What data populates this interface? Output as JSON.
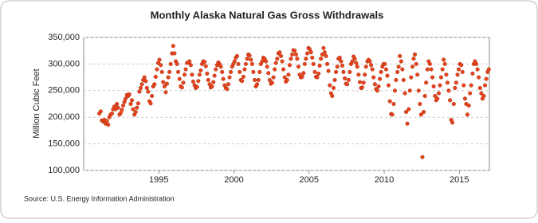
{
  "chart_data": {
    "type": "scatter",
    "title": "Monthly Alaska Natural Gas Gross Withdrawals",
    "y_label": "Million Cubic Feet",
    "source": "Source: U.S. Energy Information Administration",
    "xlim": [
      1990,
      2017
    ],
    "xticks": [
      1995,
      2000,
      2005,
      2010,
      2015
    ],
    "ylim": [
      100000,
      350000
    ],
    "yticks": [
      {
        "value": 100000,
        "label": "100,000"
      },
      {
        "value": 150000,
        "label": "150,000"
      },
      {
        "value": 200000,
        "label": "200,000"
      },
      {
        "value": 250000,
        "label": "250,000"
      },
      {
        "value": 300000,
        "label": "300,000"
      },
      {
        "value": 350000,
        "label": "350,000"
      }
    ],
    "grid": true,
    "series": [
      {
        "name": "Monthly Alaska Natural Gas Gross Withdrawals",
        "color": "#e8451e",
        "x": [
          1991.04,
          1991.13,
          1991.21,
          1991.29,
          1991.38,
          1991.46,
          1991.54,
          1991.63,
          1991.71,
          1991.79,
          1991.88,
          1991.96,
          1992.04,
          1992.13,
          1992.21,
          1992.29,
          1992.38,
          1992.46,
          1992.54,
          1992.63,
          1992.71,
          1992.79,
          1992.88,
          1992.96,
          1993.04,
          1993.13,
          1993.21,
          1993.29,
          1993.38,
          1993.46,
          1993.54,
          1993.63,
          1993.71,
          1993.79,
          1993.88,
          1993.96,
          1994.04,
          1994.13,
          1994.21,
          1994.29,
          1994.38,
          1994.46,
          1994.54,
          1994.63,
          1994.71,
          1994.79,
          1994.88,
          1994.96,
          1995.04,
          1995.13,
          1995.21,
          1995.29,
          1995.38,
          1995.46,
          1995.54,
          1995.63,
          1995.71,
          1995.79,
          1995.88,
          1995.96,
          1996.04,
          1996.13,
          1996.21,
          1996.29,
          1996.38,
          1996.46,
          1996.54,
          1996.63,
          1996.71,
          1996.79,
          1996.88,
          1996.96,
          1997.04,
          1997.13,
          1997.21,
          1997.29,
          1997.38,
          1997.46,
          1997.54,
          1997.63,
          1997.71,
          1997.79,
          1997.88,
          1997.96,
          1998.04,
          1998.13,
          1998.21,
          1998.29,
          1998.38,
          1998.46,
          1998.54,
          1998.63,
          1998.71,
          1998.79,
          1998.88,
          1998.96,
          1999.04,
          1999.13,
          1999.21,
          1999.29,
          1999.38,
          1999.46,
          1999.54,
          1999.63,
          1999.71,
          1999.79,
          1999.88,
          1999.96,
          2000.04,
          2000.13,
          2000.21,
          2000.29,
          2000.38,
          2000.46,
          2000.54,
          2000.63,
          2000.71,
          2000.79,
          2000.88,
          2000.96,
          2001.04,
          2001.13,
          2001.21,
          2001.29,
          2001.38,
          2001.46,
          2001.54,
          2001.63,
          2001.71,
          2001.79,
          2001.88,
          2001.96,
          2002.04,
          2002.13,
          2002.21,
          2002.29,
          2002.38,
          2002.46,
          2002.54,
          2002.63,
          2002.71,
          2002.79,
          2002.88,
          2002.96,
          2003.04,
          2003.13,
          2003.21,
          2003.29,
          2003.38,
          2003.46,
          2003.54,
          2003.63,
          2003.71,
          2003.79,
          2003.88,
          2003.96,
          2004.04,
          2004.13,
          2004.21,
          2004.29,
          2004.38,
          2004.46,
          2004.54,
          2004.63,
          2004.71,
          2004.79,
          2004.88,
          2004.96,
          2005.04,
          2005.13,
          2005.21,
          2005.29,
          2005.38,
          2005.46,
          2005.54,
          2005.63,
          2005.71,
          2005.79,
          2005.88,
          2005.96,
          2006.04,
          2006.13,
          2006.21,
          2006.29,
          2006.38,
          2006.46,
          2006.54,
          2006.63,
          2006.71,
          2006.79,
          2006.88,
          2006.96,
          2007.04,
          2007.13,
          2007.21,
          2007.29,
          2007.38,
          2007.46,
          2007.54,
          2007.63,
          2007.71,
          2007.79,
          2007.88,
          2007.96,
          2008.04,
          2008.13,
          2008.21,
          2008.29,
          2008.38,
          2008.46,
          2008.54,
          2008.63,
          2008.71,
          2008.79,
          2008.88,
          2008.96,
          2009.04,
          2009.13,
          2009.21,
          2009.29,
          2009.38,
          2009.46,
          2009.54,
          2009.63,
          2009.71,
          2009.79,
          2009.88,
          2009.96,
          2010.04,
          2010.13,
          2010.21,
          2010.29,
          2010.38,
          2010.46,
          2010.54,
          2010.63,
          2010.71,
          2010.79,
          2010.88,
          2010.96,
          2011.04,
          2011.13,
          2011.21,
          2011.29,
          2011.38,
          2011.46,
          2011.54,
          2011.63,
          2011.71,
          2011.79,
          2011.88,
          2011.96,
          2012.04,
          2012.13,
          2012.21,
          2012.29,
          2012.38,
          2012.46,
          2012.54,
          2012.63,
          2012.71,
          2012.79,
          2012.88,
          2012.96,
          2013.04,
          2013.13,
          2013.21,
          2013.29,
          2013.38,
          2013.46,
          2013.54,
          2013.63,
          2013.71,
          2013.79,
          2013.88,
          2013.96,
          2014.04,
          2014.13,
          2014.21,
          2014.29,
          2014.38,
          2014.46,
          2014.54,
          2014.63,
          2014.71,
          2014.79,
          2014.88,
          2014.96,
          2015.04,
          2015.13,
          2015.21,
          2015.29,
          2015.38,
          2015.46,
          2015.54,
          2015.63,
          2015.71,
          2015.79,
          2015.88,
          2015.96,
          2016.04,
          2016.13,
          2016.21,
          2016.29,
          2016.38,
          2016.46,
          2016.54,
          2016.63,
          2016.71,
          2016.79,
          2016.88,
          2016.96
        ],
        "values": [
          207000,
          211000,
          194000,
          192000,
          195000,
          188000,
          193000,
          186000,
          200000,
          205000,
          207000,
          215000,
          220000,
          215000,
          225000,
          218000,
          205000,
          208000,
          214000,
          222000,
          229000,
          235000,
          242000,
          240000,
          243000,
          225000,
          232000,
          215000,
          205000,
          210000,
          218000,
          226000,
          248000,
          255000,
          262000,
          270000,
          275000,
          268000,
          255000,
          248000,
          230000,
          226000,
          240000,
          258000,
          262000,
          276000,
          290000,
          302000,
          308000,
          298000,
          285000,
          266000,
          258000,
          247000,
          263000,
          275000,
          285000,
          300000,
          320000,
          334000,
          320000,
          305000,
          300000,
          285000,
          272000,
          258000,
          256000,
          265000,
          280000,
          290000,
          302000,
          303000,
          305000,
          298000,
          280000,
          267000,
          260000,
          255000,
          257000,
          268000,
          280000,
          288000,
          300000,
          305000,
          304000,
          296000,
          282000,
          270000,
          262000,
          256000,
          258000,
          266000,
          278000,
          290000,
          298000,
          303000,
          300000,
          295000,
          285000,
          272000,
          260000,
          255000,
          253000,
          262000,
          275000,
          285000,
          295000,
          300000,
          305000,
          312000,
          315000,
          300000,
          285000,
          270000,
          268000,
          276000,
          290000,
          300000,
          310000,
          318000,
          316000,
          308000,
          300000,
          285000,
          270000,
          258000,
          262000,
          270000,
          285000,
          300000,
          305000,
          312000,
          310000,
          305000,
          295000,
          283000,
          270000,
          263000,
          265000,
          275000,
          290000,
          302000,
          310000,
          320000,
          322000,
          315000,
          305000,
          290000,
          275000,
          267000,
          270000,
          280000,
          298000,
          310000,
          318000,
          326000,
          325000,
          318000,
          310000,
          295000,
          280000,
          275000,
          276000,
          283000,
          300000,
          310000,
          320000,
          330000,
          328000,
          322000,
          312000,
          300000,
          285000,
          276000,
          275000,
          282000,
          297000,
          310000,
          318000,
          330000,
          322000,
          315000,
          300000,
          287000,
          260000,
          245000,
          240000,
          255000,
          270000,
          285000,
          295000,
          310000,
          312000,
          305000,
          297000,
          285000,
          273000,
          263000,
          262000,
          270000,
          285000,
          300000,
          305000,
          314000,
          310000,
          302000,
          295000,
          280000,
          266000,
          255000,
          256000,
          265000,
          280000,
          295000,
          305000,
          308000,
          305000,
          298000,
          290000,
          275000,
          262000,
          253000,
          250000,
          258000,
          272000,
          285000,
          295000,
          300000,
          300000,
          290000,
          278000,
          260000,
          230000,
          206000,
          205000,
          225000,
          250000,
          270000,
          285000,
          295000,
          315000,
          305000,
          290000,
          270000,
          245000,
          210000,
          188000,
          215000,
          250000,
          275000,
          295000,
          310000,
          318000,
          300000,
          280000,
          250000,
          225000,
          205000,
          125000,
          210000,
          240000,
          265000,
          290000,
          305000,
          300000,
          290000,
          275000,
          258000,
          240000,
          232000,
          235000,
          245000,
          260000,
          275000,
          290000,
          308000,
          300000,
          280000,
          265000,
          250000,
          232000,
          195000,
          190000,
          225000,
          255000,
          265000,
          280000,
          290000,
          300000,
          298000,
          285000,
          260000,
          235000,
          225000,
          205000,
          222000,
          245000,
          260000,
          282000,
          300000,
          305000,
          300000,
          290000,
          275000,
          255000,
          245000,
          235000,
          240000,
          260000,
          272000,
          285000,
          290000
        ]
      }
    ]
  }
}
